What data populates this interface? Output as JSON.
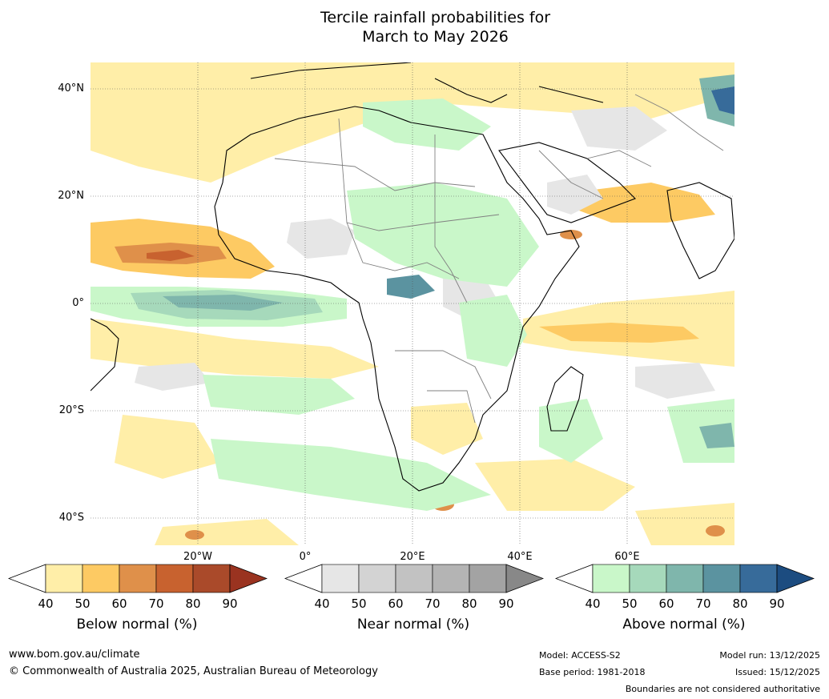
{
  "title": {
    "line1": "Tercile rainfall probabilities for",
    "line2": "March to May 2026"
  },
  "map": {
    "lat_labels": [
      "40°N",
      "20°N",
      "0°",
      "20°S",
      "40°S"
    ],
    "lon_labels": [
      "20°W",
      "0°",
      "20°E",
      "40°E",
      "60°E"
    ],
    "colors": {
      "ocean": "#ffffff",
      "coast": "#000000",
      "border": "#808080",
      "grid": "#555555"
    }
  },
  "legend": {
    "ticks": [
      "40",
      "50",
      "60",
      "70",
      "80",
      "90"
    ],
    "bars": [
      {
        "label": "Below normal (%)",
        "colors": [
          "#ffffff",
          "#ffeea8",
          "#fdca63",
          "#df904a",
          "#c8622f",
          "#aa4a2a",
          "#9a3320"
        ]
      },
      {
        "label": "Near normal (%)",
        "colors": [
          "#ffffff",
          "#e6e6e6",
          "#d3d3d3",
          "#c2c2c2",
          "#b4b4b4",
          "#a3a3a3",
          "#888888"
        ]
      },
      {
        "label": "Above normal (%)",
        "colors": [
          "#ffffff",
          "#c9f7c9",
          "#a6d9bb",
          "#7fb6ac",
          "#5b93a0",
          "#376b9a",
          "#1c4c80"
        ]
      }
    ]
  },
  "footer": {
    "website": "www.bom.gov.au/climate",
    "copyright": "© Commonwealth of Australia 2025, Australian Bureau of Meteorology",
    "model": "Model: ACCESS-S2",
    "base_period": "Base period: 1981-2018",
    "model_run": "Model run: 13/12/2025",
    "issued": "Issued: 15/12/2025",
    "disclaimer": "Boundaries are not considered authoritative"
  }
}
